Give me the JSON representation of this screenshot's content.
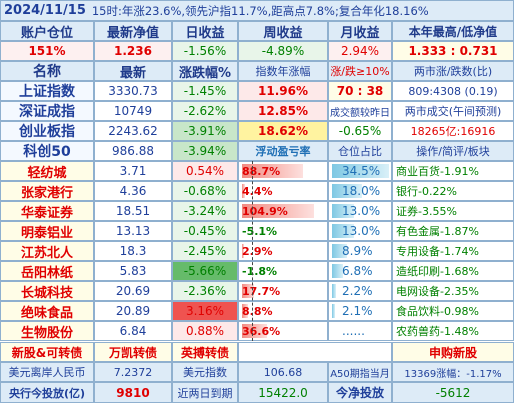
{
  "header": {
    "date": "2024/11/15",
    "summary": "15时:年涨23.6%,领先沪指11.7%,距高点7.8%;复合年化18.16%"
  },
  "summary_row": {
    "labels": [
      "账户仓位",
      "最新净值",
      "日收益",
      "周收益",
      "月收益",
      "本年最高/低净值"
    ],
    "values": [
      "151%",
      "1.236",
      "-1.56%",
      "-4.89%",
      "2.94%",
      "1.333 : 0.731"
    ]
  },
  "index_header": [
    "名称",
    "最新",
    "涨跌幅%",
    "指数年涨幅",
    "涨/跌≥10%",
    "两市涨/跌数(比)"
  ],
  "indices": [
    {
      "name": "上证指数",
      "price": "3330.73",
      "chg": "-1.45%",
      "col4": "11.96%",
      "col5": "70 : 38",
      "col6": "809:4308 (0.19)"
    },
    {
      "name": "深证成指",
      "price": "10749",
      "chg": "-2.62%",
      "col4": "12.85%",
      "col5": "成交额较昨日",
      "col6": "两市成交(午间预测)"
    },
    {
      "name": "创业板指",
      "price": "2243.62",
      "chg": "-3.91%",
      "col4": "18.62%",
      "col5": "-0.65%",
      "col6": "18265亿:16916"
    },
    {
      "name": "科创50",
      "price": "986.88",
      "chg": "-3.94%",
      "col4": "浮动盈亏率",
      "col5": "仓位占比",
      "col6": "操作/简评/板块"
    }
  ],
  "stocks": [
    {
      "name": "轻纺城",
      "price": "3.71",
      "chg": "0.54%",
      "pnl": "88.7%",
      "pos": "34.5%",
      "sector": "商业百货-1.91%",
      "pnl_val": 88.7,
      "pos_val": 34.5
    },
    {
      "name": "张家港行",
      "price": "4.36",
      "chg": "-0.68%",
      "pnl": "4.4%",
      "pos": "18.0%",
      "sector": "银行-0.22%",
      "pnl_val": 4.4,
      "pos_val": 18.0
    },
    {
      "name": "华泰证券",
      "price": "18.51",
      "chg": "-3.24%",
      "pnl": "104.9%",
      "pos": "13.0%",
      "sector": "证券-3.55%",
      "pnl_val": 104.9,
      "pos_val": 13.0
    },
    {
      "name": "明泰铝业",
      "price": "13.13",
      "chg": "-0.45%",
      "pnl": "-5.1%",
      "pos": "13.0%",
      "sector": "有色金属-1.87%",
      "pnl_val": -5.1,
      "pos_val": 13.0
    },
    {
      "name": "江苏北人",
      "price": "18.3",
      "chg": "-2.45%",
      "pnl": "2.9%",
      "pos": "8.9%",
      "sector": "专用设备-1.74%",
      "pnl_val": 2.9,
      "pos_val": 8.9
    },
    {
      "name": "岳阳林纸",
      "price": "5.83",
      "chg": "-5.66%",
      "pnl": "-1.8%",
      "pos": "6.8%",
      "sector": "造纸印刷-1.68%",
      "pnl_val": -1.8,
      "pos_val": 6.8
    },
    {
      "name": "长城科技",
      "price": "20.69",
      "chg": "-2.36%",
      "pnl": "17.7%",
      "pos": "2.2%",
      "sector": "电网设备-2.35%",
      "pnl_val": 17.7,
      "pos_val": 2.2
    },
    {
      "name": "绝味食品",
      "price": "20.89",
      "chg": "3.16%",
      "pnl": "8.8%",
      "pos": "2.1%",
      "sector": "食品饮料-0.98%",
      "pnl_val": 8.8,
      "pos_val": 2.1
    },
    {
      "name": "生物股份",
      "price": "6.84",
      "chg": "0.88%",
      "pnl": "36.6%",
      "pos": "......",
      "sector": "农药兽药-1.48%",
      "pnl_val": 36.6,
      "pos_val": 0
    }
  ],
  "footer_links": {
    "a": "新股&可转债",
    "b": "万凯转债",
    "c": "英搏转债",
    "d": "申购新股"
  },
  "bottom1": {
    "a": "美元离岸人民币",
    "b": "7.2372",
    "c": "美元指数",
    "d": "106.68",
    "e": "A50期指当月",
    "f": "13369涨幅：-1.17%"
  },
  "bottom2": {
    "a": "央行今投放(亿)",
    "b": "9810",
    "c": "近两日到期",
    "d": "15422.0",
    "e": "今净投放",
    "f": "-5612"
  },
  "colors": {
    "red": "#e00000",
    "green": "#008000",
    "blue": "#1f3f9a",
    "header_bg": "#ddebf7"
  }
}
